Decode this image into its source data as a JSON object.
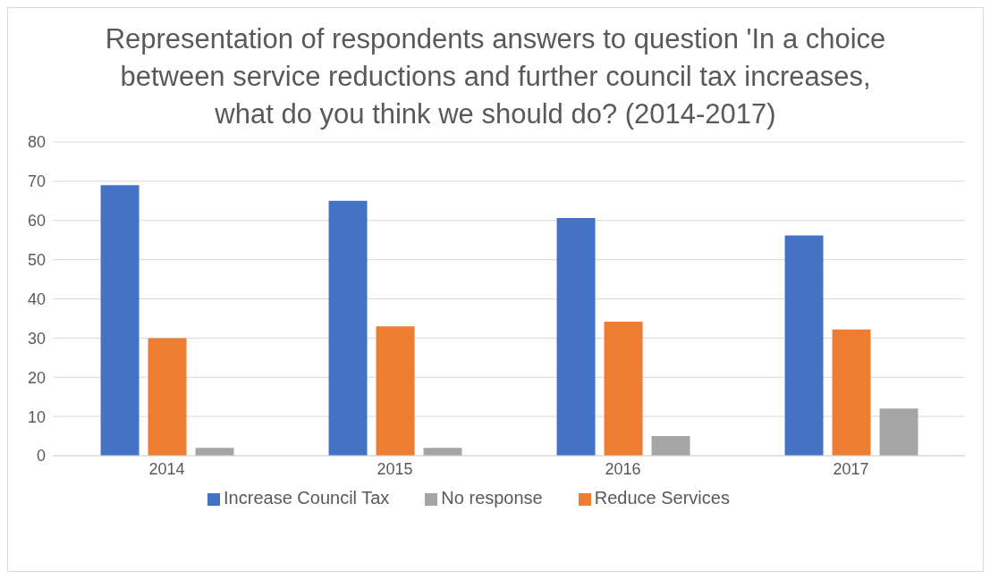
{
  "chart_data": {
    "type": "bar",
    "title": "Representation of respondents answers to question 'In a choice between service reductions and further council tax increases, what do you think we should do? (2014-2017)",
    "categories": [
      "2014",
      "2015",
      "2016",
      "2017"
    ],
    "series": [
      {
        "name": "Increase Council Tax",
        "color": "#4472c4",
        "values": [
          69,
          65,
          60.6,
          56.2
        ]
      },
      {
        "name": "Reduce Services",
        "color": "#ed7d31",
        "values": [
          30,
          33,
          34.2,
          32.2
        ]
      },
      {
        "name": "No response",
        "color": "#a5a5a5",
        "values": [
          2,
          2,
          5,
          12
        ]
      }
    ],
    "ylim": [
      0,
      80
    ],
    "yticks": [
      0,
      10,
      20,
      30,
      40,
      50,
      60,
      70,
      80
    ],
    "grid": "y",
    "legend": "bottom"
  }
}
